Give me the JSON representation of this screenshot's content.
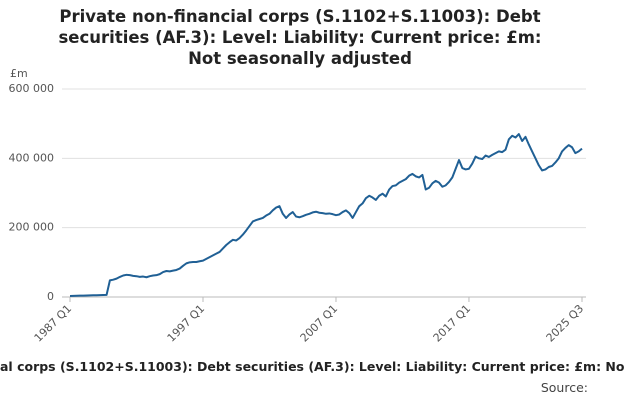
{
  "chart_data": {
    "type": "line",
    "title": "Private non-financial corps (S.1102+S.11003): Debt securities (AF.3): Level: Liability: Current price: £m: Not seasonally adjusted",
    "ylabel": "£m",
    "footer": "al corps (S.1102+S.11003): Debt securities (AF.3): Level: Liability: Current price: £m: No",
    "source": "Source:",
    "categories": [
      "1987 Q1",
      null,
      null,
      null,
      null,
      null,
      null,
      null,
      null,
      null,
      null,
      null,
      null,
      null,
      null,
      null,
      null,
      null,
      null,
      null,
      null,
      null,
      null,
      null,
      null,
      null,
      null,
      null,
      null,
      null,
      null,
      null,
      null,
      null,
      null,
      null,
      null,
      null,
      null,
      null,
      "1997 Q1",
      null,
      null,
      null,
      null,
      null,
      null,
      null,
      null,
      null,
      null,
      null,
      null,
      null,
      null,
      null,
      null,
      null,
      null,
      null,
      null,
      null,
      null,
      null,
      null,
      null,
      null,
      null,
      null,
      null,
      null,
      null,
      null,
      null,
      null,
      null,
      null,
      null,
      null,
      null,
      "2007 Q1",
      null,
      null,
      null,
      null,
      null,
      null,
      null,
      null,
      null,
      null,
      null,
      null,
      null,
      null,
      null,
      null,
      null,
      null,
      null,
      null,
      null,
      null,
      null,
      null,
      null,
      null,
      null,
      null,
      null,
      null,
      null,
      null,
      null,
      null,
      null,
      null,
      null,
      null,
      null,
      "2017 Q1",
      null,
      null,
      null,
      null,
      null,
      null,
      null,
      null,
      null,
      null,
      null,
      null,
      null,
      null,
      null,
      null,
      null,
      null,
      null,
      null,
      null,
      null,
      null,
      null,
      null,
      null,
      null,
      null,
      null,
      null,
      null,
      null,
      null,
      "2025 Q3"
    ],
    "series": [
      {
        "color": "#206095",
        "values": [
          3000,
          3200,
          3500,
          3800,
          4000,
          4300,
          4600,
          5000,
          5200,
          5500,
          5800,
          6000,
          48000,
          50000,
          53000,
          58000,
          62000,
          64000,
          63000,
          61000,
          60000,
          58000,
          59000,
          57000,
          60000,
          62000,
          63000,
          66000,
          72000,
          75000,
          74000,
          76000,
          78000,
          82000,
          90000,
          97000,
          100000,
          101000,
          101000,
          103000,
          105000,
          110000,
          115000,
          120000,
          125000,
          130000,
          140000,
          150000,
          158000,
          165000,
          163000,
          170000,
          180000,
          192000,
          205000,
          218000,
          222000,
          225000,
          228000,
          235000,
          240000,
          250000,
          258000,
          262000,
          240000,
          228000,
          238000,
          245000,
          232000,
          230000,
          233000,
          237000,
          240000,
          244000,
          246000,
          243000,
          242000,
          240000,
          241000,
          239000,
          236000,
          238000,
          245000,
          250000,
          242000,
          228000,
          245000,
          262000,
          270000,
          285000,
          292000,
          287000,
          280000,
          292000,
          298000,
          290000,
          310000,
          320000,
          322000,
          330000,
          335000,
          340000,
          350000,
          355000,
          348000,
          345000,
          352000,
          310000,
          315000,
          328000,
          335000,
          330000,
          318000,
          322000,
          332000,
          345000,
          370000,
          395000,
          372000,
          368000,
          370000,
          385000,
          405000,
          400000,
          398000,
          408000,
          404000,
          410000,
          415000,
          420000,
          418000,
          425000,
          455000,
          465000,
          460000,
          470000,
          450000,
          462000,
          440000,
          420000,
          400000,
          380000,
          365000,
          368000,
          375000,
          378000,
          388000,
          400000,
          420000,
          430000,
          438000,
          432000,
          415000,
          420000,
          428000
        ]
      }
    ],
    "ylim": [
      0,
      600000
    ],
    "yticks": [
      0,
      {
        "value": 200000,
        "label": "200 000"
      },
      {
        "value": 400000,
        "label": "400 000"
      },
      {
        "value": 600000,
        "label": "600 000"
      }
    ],
    "grid": true
  }
}
